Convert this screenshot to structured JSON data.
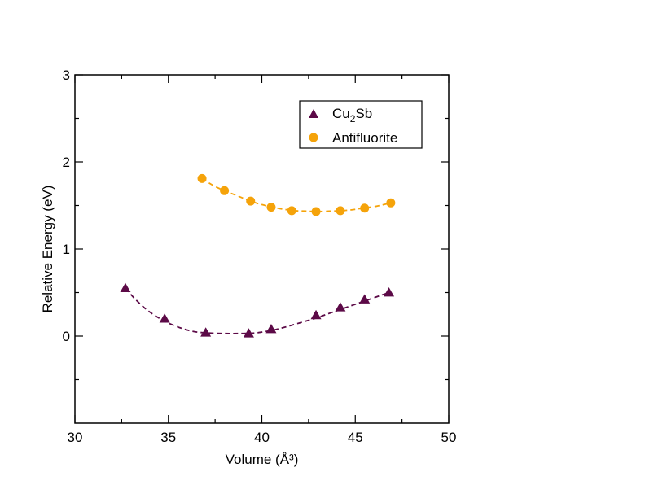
{
  "chart_data": {
    "type": "scatter",
    "title": "",
    "xlabel": "Volume (Å³)",
    "ylabel": "Relative Energy (eV)",
    "xlim": [
      30,
      50
    ],
    "ylim": [
      -1,
      3
    ],
    "x_major_ticks": [
      30,
      35,
      40,
      45,
      50
    ],
    "x_minor_ticks": [
      32.5,
      37.5,
      42.5,
      47.5
    ],
    "y_major_ticks": [
      0,
      1,
      2,
      3
    ],
    "y_minor_ticks": [
      -0.5,
      0.5,
      1.5,
      2.5
    ],
    "grid": false,
    "legend_position": "top-right",
    "series": [
      {
        "name": "Cu2Sb",
        "legend_main": "Cu",
        "legend_sub": "2",
        "legend_tail": "Sb",
        "marker": "triangle",
        "color": "#5c0a47",
        "x": [
          32.7,
          34.8,
          37.0,
          39.3,
          40.5,
          42.9,
          44.2,
          45.5,
          46.8
        ],
        "y": [
          0.55,
          0.2,
          0.04,
          0.03,
          0.08,
          0.24,
          0.33,
          0.42,
          0.5
        ],
        "fit": [
          [
            32.7,
            0.55
          ],
          [
            33.2,
            0.43
          ],
          [
            33.8,
            0.31
          ],
          [
            34.4,
            0.22
          ],
          [
            35.0,
            0.15
          ],
          [
            35.7,
            0.09
          ],
          [
            36.4,
            0.05
          ],
          [
            37.2,
            0.035
          ],
          [
            38.0,
            0.03
          ],
          [
            38.8,
            0.03
          ],
          [
            39.6,
            0.035
          ],
          [
            40.4,
            0.06
          ],
          [
            41.2,
            0.1
          ],
          [
            42.0,
            0.15
          ],
          [
            42.8,
            0.2
          ],
          [
            43.6,
            0.26
          ],
          [
            44.4,
            0.32
          ],
          [
            45.2,
            0.38
          ],
          [
            46.0,
            0.44
          ],
          [
            46.8,
            0.5
          ]
        ]
      },
      {
        "name": "Antifluorite",
        "marker": "circle",
        "color": "#f5a30a",
        "x": [
          36.8,
          38.0,
          39.4,
          40.5,
          41.6,
          42.9,
          44.2,
          45.5,
          46.9
        ],
        "y": [
          1.81,
          1.67,
          1.55,
          1.48,
          1.44,
          1.43,
          1.44,
          1.47,
          1.53
        ],
        "fit": [
          [
            36.8,
            1.81
          ],
          [
            37.4,
            1.73
          ],
          [
            38.0,
            1.67
          ],
          [
            38.7,
            1.61
          ],
          [
            39.4,
            1.55
          ],
          [
            40.0,
            1.51
          ],
          [
            40.6,
            1.48
          ],
          [
            41.2,
            1.455
          ],
          [
            41.8,
            1.44
          ],
          [
            42.4,
            1.435
          ],
          [
            43.0,
            1.43
          ],
          [
            43.6,
            1.435
          ],
          [
            44.2,
            1.44
          ],
          [
            44.8,
            1.45
          ],
          [
            45.4,
            1.47
          ],
          [
            46.1,
            1.49
          ],
          [
            46.9,
            1.53
          ]
        ]
      }
    ]
  }
}
